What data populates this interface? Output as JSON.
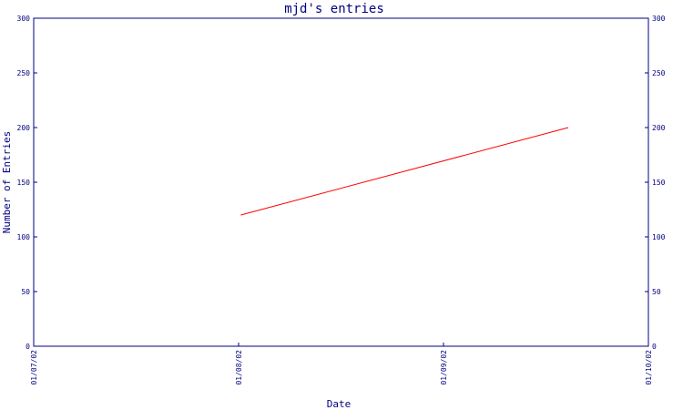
{
  "chart_data": {
    "type": "line",
    "title": "mjd's entries",
    "xlabel": "Date",
    "ylabel": "Number of Entries",
    "x_ticks": [
      "01/07/02",
      "01/08/02",
      "01/09/02",
      "01/10/02"
    ],
    "y_ticks": [
      0,
      50,
      100,
      150,
      200,
      250,
      300
    ],
    "ylim": [
      0,
      300
    ],
    "xlim": [
      "2002-07-01",
      "2002-10-01"
    ],
    "grid": false,
    "series": [
      {
        "x": [
          "2002-08-01",
          "2002-09-19"
        ],
        "values": [
          120,
          200
        ]
      }
    ],
    "colors": {
      "axis": "#000080",
      "series": "#ff0000"
    }
  }
}
